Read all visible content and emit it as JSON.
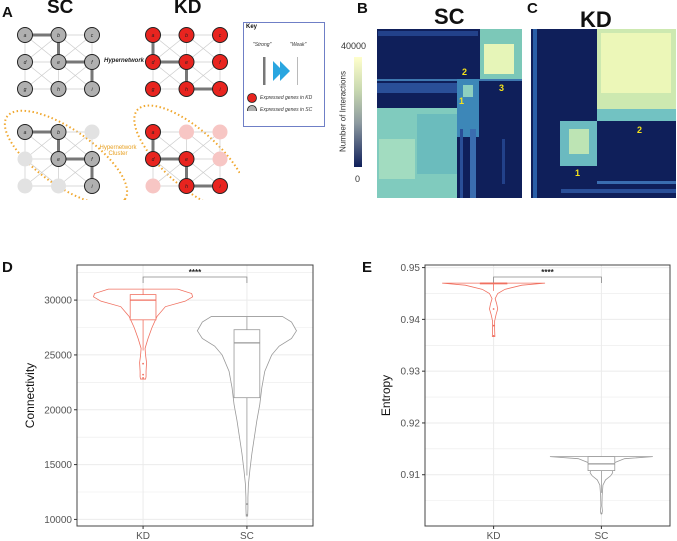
{
  "panels": {
    "A": {
      "label": "A",
      "sc_title": "SC",
      "kd_title": "KD",
      "node_labels": [
        "a",
        "b",
        "c",
        "d",
        "e",
        "f",
        "g",
        "h",
        "i"
      ],
      "hypernetwork_label": "Hypernetwork",
      "cluster_label_line1": "Hypernetwork",
      "cluster_label_line2": "Cluster",
      "key": {
        "title": "Key",
        "strong": "\"Strong\"",
        "weak": "\"Weak\"",
        "kd_legend": "Expressed genes in KD",
        "sc_legend": "Expressed genes in SC",
        "arrow_icon": "double-arrow-right"
      },
      "colors": {
        "kd": "#e8241f",
        "sc": "#b0b0b0",
        "cluster": "#f0a830",
        "arrow": "#2aa6e0",
        "key_border": "#6f7fc6"
      }
    },
    "B": {
      "label": "B",
      "title": "SC",
      "cluster_labels": [
        "1",
        "2",
        "3"
      ]
    },
    "C": {
      "label": "C",
      "title": "KD",
      "cluster_labels": [
        "1",
        "2"
      ]
    },
    "colorbar": {
      "title": "Number of Interactions",
      "max_label": "40000",
      "min_label": "0",
      "colors": [
        "#0f1f5a",
        "#ffffcc"
      ]
    },
    "D": {
      "label": "D"
    },
    "E": {
      "label": "E"
    }
  },
  "chart_data": [
    {
      "panel": "D",
      "type": "violin",
      "categories": [
        "KD",
        "SC"
      ],
      "ylabel": "Connectivity",
      "xlabel": "",
      "ylim": [
        9400,
        33200
      ],
      "yticks": [
        "10000",
        "15000",
        "20000",
        "25000",
        "30000"
      ],
      "grid": true,
      "significance": "****",
      "colors": {
        "KD": "#f07060",
        "SC": "#999999"
      },
      "series": [
        {
          "category": "KD",
          "box": {
            "q1": 28200,
            "median": 30000,
            "q3": 30500,
            "whisker_low": 25400,
            "whisker_high": 31000
          },
          "outliers": [
            24200,
            23200,
            22900
          ],
          "density": [
            [
              31000,
              0.7
            ],
            [
              30600,
              0.98
            ],
            [
              30300,
              1.0
            ],
            [
              29900,
              0.85
            ],
            [
              29400,
              0.45
            ],
            [
              28500,
              0.28
            ],
            [
              27500,
              0.18
            ],
            [
              26500,
              0.1
            ],
            [
              25600,
              0.04
            ],
            [
              25000,
              0.05
            ],
            [
              24300,
              0.07
            ],
            [
              23500,
              0.06
            ],
            [
              23000,
              0.06
            ],
            [
              22800,
              0.05
            ]
          ]
        },
        {
          "category": "SC",
          "box": {
            "q1": 21100,
            "median": 26100,
            "q3": 27300,
            "whisker_low": 14000,
            "whisker_high": 28500
          },
          "outliers": [
            11400,
            10400
          ],
          "density": [
            [
              28500,
              0.72
            ],
            [
              28000,
              0.9
            ],
            [
              27200,
              1.0
            ],
            [
              26500,
              0.9
            ],
            [
              25800,
              0.65
            ],
            [
              25000,
              0.5
            ],
            [
              23500,
              0.36
            ],
            [
              22000,
              0.3
            ],
            [
              20500,
              0.26
            ],
            [
              19000,
              0.2
            ],
            [
              17500,
              0.15
            ],
            [
              16000,
              0.1
            ],
            [
              14500,
              0.06
            ],
            [
              13200,
              0.03
            ],
            [
              12000,
              0.02
            ],
            [
              11000,
              0.02
            ],
            [
              10300,
              0.015
            ]
          ]
        }
      ]
    },
    {
      "panel": "E",
      "type": "violin",
      "categories": [
        "KD",
        "SC"
      ],
      "ylabel": "Entropy",
      "xlabel": "",
      "ylim": [
        0.9001,
        0.9505
      ],
      "yticks": [
        "0.91",
        "0.92",
        "0.93",
        "0.94",
        "0.95"
      ],
      "grid": true,
      "significance": "****",
      "colors": {
        "KD": "#f07060",
        "SC": "#999999"
      },
      "series": [
        {
          "category": "KD",
          "box": {
            "q1": 0.9469,
            "median": 0.947,
            "q3": 0.947,
            "whisker_low": 0.9455,
            "whisker_high": 0.947
          },
          "outliers": [
            0.942,
            0.9388,
            0.9368
          ],
          "density": [
            [
              0.947,
              1.0
            ],
            [
              0.9466,
              0.55
            ],
            [
              0.9458,
              0.22
            ],
            [
              0.945,
              0.08
            ],
            [
              0.944,
              0.03
            ],
            [
              0.943,
              0.06
            ],
            [
              0.942,
              0.08
            ],
            [
              0.941,
              0.05
            ],
            [
              0.9397,
              0.02
            ],
            [
              0.939,
              0.02
            ],
            [
              0.938,
              0.02
            ],
            [
              0.9367,
              0.025
            ]
          ]
        },
        {
          "category": "SC",
          "box": {
            "q1": 0.9108,
            "median": 0.9121,
            "q3": 0.9135,
            "whisker_low": 0.9065,
            "whisker_high": 0.9135
          },
          "outliers": [
            0.9025
          ],
          "density": [
            [
              0.9135,
              1.0
            ],
            [
              0.9131,
              0.45
            ],
            [
              0.9122,
              0.22
            ],
            [
              0.9112,
              0.2
            ],
            [
              0.9104,
              0.22
            ],
            [
              0.9098,
              0.18
            ],
            [
              0.909,
              0.08
            ],
            [
              0.908,
              0.03
            ],
            [
              0.906,
              0.015
            ],
            [
              0.904,
              0.01
            ],
            [
              0.903,
              0.02
            ],
            [
              0.9025,
              0.01
            ]
          ]
        }
      ]
    }
  ]
}
